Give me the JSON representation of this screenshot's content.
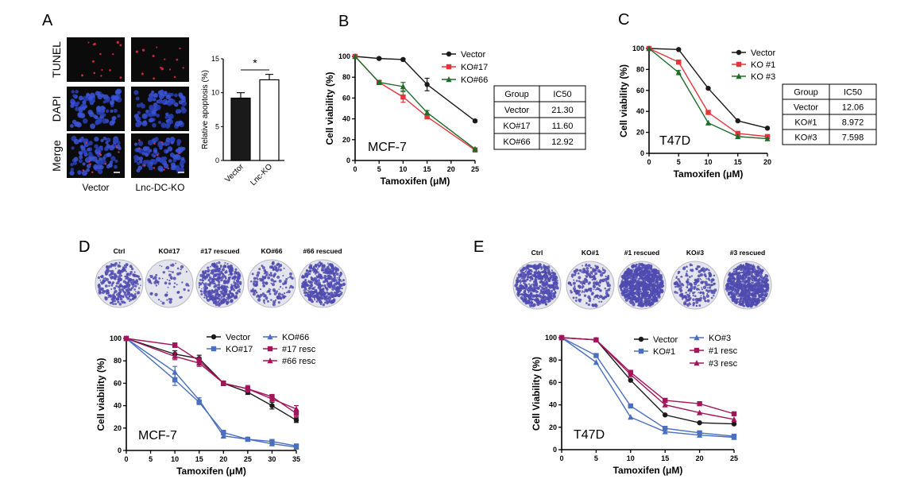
{
  "colors": {
    "black": "#1a1a1a",
    "red": "#e8333b",
    "green": "#1e6b2a",
    "blue": "#4a6fc0",
    "maroon": "#a3155a",
    "cellDark": "#0b0b0b",
    "dapi": "#2a3fb8",
    "colony": "#4f4bb0"
  },
  "panelA": {
    "label": "A",
    "rows": [
      "TUNEL",
      "DAPI",
      "Merge"
    ],
    "cols": [
      "Vector",
      "Lnc-DC-KO"
    ]
  },
  "panelD_plates": [
    "Ctrl",
    "KO#17",
    "#17 rescued",
    "KO#66",
    "#66 rescued"
  ],
  "panelE_plates": [
    "Ctrl",
    "KO#1",
    "#1 rescued",
    "KO#3",
    "#3 rescued"
  ],
  "tables": [
    {
      "headers": [
        "Group",
        "IC50"
      ],
      "rows": [
        [
          "Vector",
          "21.30"
        ],
        [
          "KO#17",
          "11.60"
        ],
        [
          "KO#66",
          "12.92"
        ]
      ]
    },
    {
      "headers": [
        "Group",
        "IC50"
      ],
      "rows": [
        [
          "Vector",
          "12.06"
        ],
        [
          "KO#1",
          "8.972"
        ],
        [
          "KO#3",
          "7.598"
        ]
      ]
    }
  ],
  "chart_data": [
    {
      "panel": "A",
      "type": "bar",
      "categories": [
        "Vector",
        "Lnc-KO"
      ],
      "values": [
        9.2,
        11.9
      ],
      "errors": [
        0.8,
        0.8
      ],
      "ylabel": "Relative apoptosis (%)",
      "ylim": [
        0,
        15
      ],
      "yticks": [
        0,
        5,
        10,
        15
      ],
      "significance": "*",
      "fills": [
        "#1a1a1a",
        "#ffffff"
      ]
    },
    {
      "panel": "B",
      "label": "B",
      "type": "line",
      "annotation": "MCF-7",
      "xlabel": "Tamoxifen (μM)",
      "ylabel": "Cell viability (%)",
      "x": [
        0,
        5,
        10,
        15,
        25
      ],
      "xlim": [
        0,
        25
      ],
      "ylim": [
        0,
        100
      ],
      "xticks": [
        0,
        5,
        10,
        15,
        20,
        25
      ],
      "yticks": [
        0,
        20,
        40,
        60,
        80,
        100
      ],
      "legend": "top-right",
      "series": [
        {
          "name": "Vector",
          "color": "#1a1a1a",
          "marker": "circle",
          "values": [
            100,
            98,
            97,
            73,
            38
          ],
          "errors": [
            0,
            1,
            1,
            6,
            1
          ]
        },
        {
          "name": "KO#17",
          "color": "#e8333b",
          "marker": "square",
          "values": [
            100,
            75,
            61,
            42,
            10
          ],
          "errors": [
            0,
            2,
            5,
            2,
            1
          ]
        },
        {
          "name": "KO#66",
          "color": "#1e6b2a",
          "marker": "triangle",
          "values": [
            100,
            75,
            71,
            46,
            11
          ],
          "errors": [
            0,
            2,
            4,
            2,
            1
          ]
        }
      ]
    },
    {
      "panel": "C",
      "label": "C",
      "type": "line",
      "annotation": "T47D",
      "xlabel": "Tamoxifen (μM)",
      "ylabel": "Cell viability (%)",
      "x": [
        0,
        5,
        10,
        15,
        20
      ],
      "xlim": [
        0,
        20
      ],
      "ylim": [
        0,
        100
      ],
      "xticks": [
        0,
        5,
        10,
        15,
        20
      ],
      "yticks": [
        0,
        20,
        40,
        60,
        80,
        100
      ],
      "legend": "top-right",
      "series": [
        {
          "name": "Vector",
          "color": "#1a1a1a",
          "marker": "circle",
          "values": [
            100,
            99,
            62,
            31,
            24
          ],
          "errors": [
            0,
            0,
            0,
            0,
            0
          ]
        },
        {
          "name": "KO #1",
          "color": "#e8333b",
          "marker": "square",
          "values": [
            100,
            87,
            39,
            19,
            16
          ],
          "errors": [
            0,
            0,
            0,
            0,
            0
          ]
        },
        {
          "name": "KO #3",
          "color": "#1e6b2a",
          "marker": "triangle",
          "values": [
            100,
            77,
            29,
            16,
            14
          ],
          "errors": [
            0,
            2,
            0,
            0,
            0
          ]
        }
      ]
    },
    {
      "panel": "D",
      "label": "D",
      "type": "line",
      "annotation": "MCF-7",
      "xlabel": "Tamoxifen (μM)",
      "ylabel": "Cell viability (%)",
      "x": [
        0,
        10,
        15,
        20,
        25,
        30,
        35
      ],
      "xlim": [
        0,
        35
      ],
      "ylim": [
        0,
        100
      ],
      "xticks": [
        0,
        5,
        10,
        15,
        20,
        25,
        30,
        35
      ],
      "yticks": [
        0,
        20,
        40,
        60,
        80,
        100
      ],
      "legend": "top-right",
      "series": [
        {
          "name": "Vector",
          "color": "#1a1a1a",
          "marker": "circle",
          "values": [
            100,
            86,
            82,
            60,
            52,
            40,
            27
          ],
          "errors": [
            0,
            3,
            3,
            2,
            2,
            3,
            2
          ]
        },
        {
          "name": "KO#17",
          "color": "#4a6fc0",
          "marker": "square",
          "values": [
            100,
            63,
            43,
            16,
            10,
            8,
            4
          ],
          "errors": [
            0,
            5,
            2,
            2,
            1,
            1,
            1
          ]
        },
        {
          "name": "KO#66",
          "color": "#4a6fc0",
          "marker": "triangle",
          "values": [
            100,
            70,
            45,
            13,
            10,
            6,
            3
          ],
          "errors": [
            0,
            5,
            2,
            2,
            1,
            1,
            1
          ]
        },
        {
          "name": "#17 resc",
          "color": "#a3155a",
          "marker": "square",
          "values": [
            100,
            94,
            80,
            60,
            55,
            48,
            33
          ],
          "errors": [
            0,
            2,
            3,
            2,
            2,
            2,
            3
          ]
        },
        {
          "name": "#66 resc",
          "color": "#a3155a",
          "marker": "triangle",
          "values": [
            100,
            84,
            78,
            60,
            55,
            46,
            37
          ],
          "errors": [
            0,
            3,
            3,
            2,
            3,
            2,
            3
          ]
        }
      ]
    },
    {
      "panel": "E",
      "label": "E",
      "type": "line",
      "annotation": "T47D",
      "xlabel": "Tamoxifen (μM)",
      "ylabel": "Cell Viability (%)",
      "x": [
        0,
        5,
        10,
        15,
        20,
        25
      ],
      "xlim": [
        0,
        25
      ],
      "ylim": [
        0,
        100
      ],
      "xticks": [
        0,
        5,
        10,
        15,
        20,
        25
      ],
      "yticks": [
        0,
        20,
        40,
        60,
        80,
        100
      ],
      "legend": "top-right",
      "series": [
        {
          "name": "Vector",
          "color": "#1a1a1a",
          "marker": "circle",
          "values": [
            100,
            98,
            62,
            31,
            24,
            23
          ],
          "errors": [
            0,
            0,
            0,
            0,
            0,
            0
          ]
        },
        {
          "name": "KO#1",
          "color": "#4a6fc0",
          "marker": "square",
          "values": [
            100,
            84,
            39,
            19,
            15,
            12
          ],
          "errors": [
            0,
            0,
            0,
            0,
            0,
            0
          ]
        },
        {
          "name": "KO#3",
          "color": "#4a6fc0",
          "marker": "triangle",
          "values": [
            100,
            78,
            29,
            16,
            13,
            11
          ],
          "errors": [
            0,
            0,
            0,
            0,
            0,
            0
          ]
        },
        {
          "name": "#1 resc",
          "color": "#a3155a",
          "marker": "square",
          "values": [
            100,
            98,
            69,
            44,
            41,
            32
          ],
          "errors": [
            0,
            0,
            0,
            0,
            0,
            0
          ]
        },
        {
          "name": "#3 resc",
          "color": "#a3155a",
          "marker": "triangle",
          "values": [
            100,
            98,
            67,
            40,
            33,
            27
          ],
          "errors": [
            0,
            0,
            0,
            0,
            0,
            0
          ]
        }
      ]
    }
  ]
}
